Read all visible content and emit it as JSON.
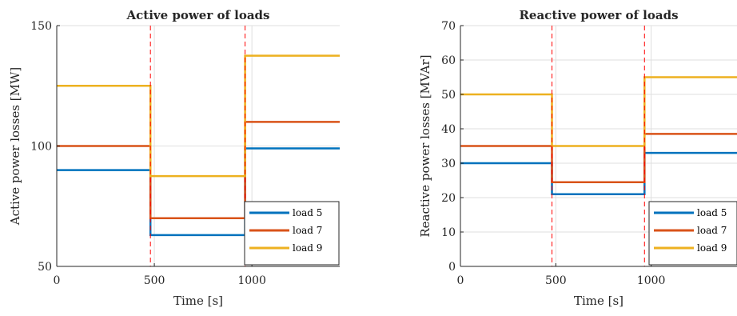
{
  "chart_data": [
    {
      "type": "line",
      "title": "Active power of loads",
      "xlabel": "Time [s]",
      "ylabel": "Active power losses [MW]",
      "xlim": [
        0,
        1450
      ],
      "ylim": [
        50,
        150
      ],
      "xticks": [
        0,
        500,
        1000
      ],
      "yticks": [
        50,
        100,
        150
      ],
      "x_tick_labels": [
        "0",
        "500",
        "1000"
      ],
      "y_tick_labels": [
        "50",
        "100",
        "150"
      ],
      "grid": true,
      "vlines": [
        480,
        965
      ],
      "legend_position": "bottom-right",
      "series": [
        {
          "name": "load 5",
          "color": "#0072BD",
          "x": [
            0,
            480,
            480,
            965,
            965,
            1450
          ],
          "y": [
            90,
            90,
            63,
            63,
            99,
            99
          ]
        },
        {
          "name": "load 7",
          "color": "#D95319",
          "x": [
            0,
            480,
            480,
            965,
            965,
            1450
          ],
          "y": [
            100,
            100,
            70,
            70,
            110,
            110
          ]
        },
        {
          "name": "load 9",
          "color": "#EDB120",
          "x": [
            0,
            480,
            480,
            965,
            965,
            1450
          ],
          "y": [
            125,
            125,
            87.5,
            87.5,
            137.5,
            137.5
          ]
        }
      ]
    },
    {
      "type": "line",
      "title": "Reactive power of loads",
      "xlabel": "Time [s]",
      "ylabel": "Reactive power losses [MVAr]",
      "xlim": [
        0,
        1450
      ],
      "ylim": [
        0,
        70
      ],
      "xticks": [
        0,
        500,
        1000
      ],
      "yticks": [
        0,
        10,
        20,
        30,
        40,
        50,
        60,
        70
      ],
      "x_tick_labels": [
        "0",
        "500",
        "1000"
      ],
      "y_tick_labels": [
        "0",
        "10",
        "20",
        "30",
        "40",
        "50",
        "60",
        "70"
      ],
      "grid": true,
      "vlines": [
        480,
        965
      ],
      "legend_position": "bottom-right",
      "series": [
        {
          "name": "load 5",
          "color": "#0072BD",
          "x": [
            0,
            480,
            480,
            965,
            965,
            1450
          ],
          "y": [
            30,
            30,
            21,
            21,
            33,
            33
          ]
        },
        {
          "name": "load 7",
          "color": "#D95319",
          "x": [
            0,
            480,
            480,
            965,
            965,
            1450
          ],
          "y": [
            35,
            35,
            24.5,
            24.5,
            38.5,
            38.5
          ]
        },
        {
          "name": "load 9",
          "color": "#EDB120",
          "x": [
            0,
            480,
            480,
            965,
            965,
            1450
          ],
          "y": [
            50,
            50,
            35,
            35,
            55,
            55
          ]
        }
      ]
    }
  ]
}
